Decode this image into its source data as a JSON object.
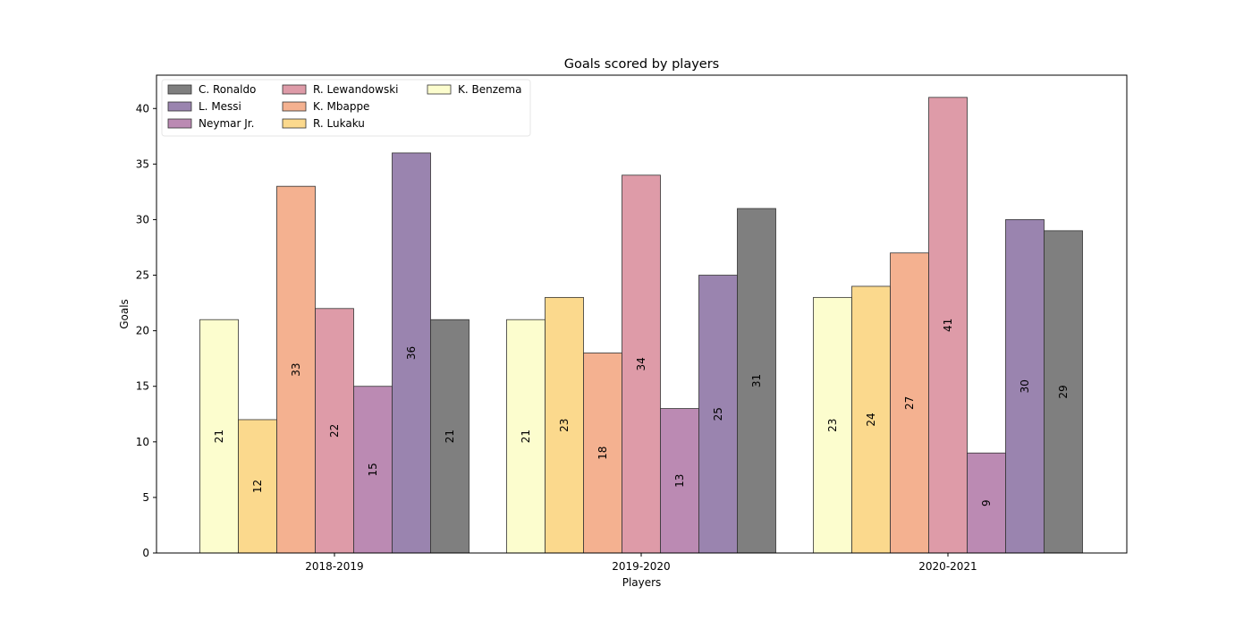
{
  "chart_data": {
    "type": "bar",
    "title": "Goals scored by players",
    "xlabel": "Players",
    "ylabel": "Goals",
    "categories": [
      "2018-2019",
      "2019-2020",
      "2020-2021"
    ],
    "ylim": [
      0,
      43
    ],
    "yticks": [
      0,
      5,
      10,
      15,
      20,
      25,
      30,
      35,
      40
    ],
    "grid": false,
    "legend_position": "top-left",
    "legend_order": [
      "C. Ronaldo",
      "L. Messi",
      "Neymar Jr.",
      "R. Lewandowski",
      "K. Mbappe",
      "R. Lukaku",
      "K. Benzema"
    ],
    "series": [
      {
        "name": "K. Benzema",
        "color": "#fcfdce",
        "values": [
          21,
          21,
          23
        ]
      },
      {
        "name": "R. Lukaku",
        "color": "#fbd98d",
        "values": [
          12,
          23,
          24
        ]
      },
      {
        "name": "K. Mbappe",
        "color": "#f4b190",
        "values": [
          33,
          18,
          27
        ]
      },
      {
        "name": "R. Lewandowski",
        "color": "#de9ba8",
        "values": [
          22,
          34,
          41
        ]
      },
      {
        "name": "Neymar Jr.",
        "color": "#bb8ab3",
        "values": [
          15,
          13,
          9
        ]
      },
      {
        "name": "L. Messi",
        "color": "#9a84af",
        "values": [
          36,
          25,
          30
        ]
      },
      {
        "name": "C. Ronaldo",
        "color": "#7f7f7f",
        "values": [
          21,
          31,
          29
        ]
      }
    ]
  }
}
